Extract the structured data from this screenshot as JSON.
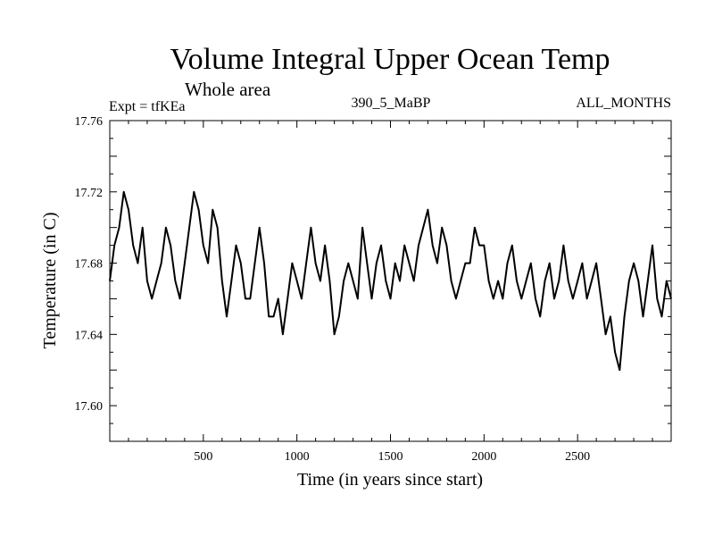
{
  "chart_data": {
    "type": "line",
    "title": "Volume Integral Upper Ocean Temp",
    "subtitle": "Whole area",
    "annotations": {
      "experiment": "Expt = tfKEa",
      "run": "390_5_MaBP",
      "months": "ALL_MONTHS"
    },
    "xlabel": "Time (in years since start)",
    "ylabel": "Temperature (in C)",
    "xlim": [
      0,
      3000
    ],
    "ylim": [
      17.58,
      17.76
    ],
    "xticks": [
      500,
      1000,
      1500,
      2000,
      2500
    ],
    "xtick_labels": [
      "500",
      "1000",
      "1500",
      "2000",
      "2500"
    ],
    "yticks": [
      17.6,
      17.64,
      17.68,
      17.72,
      17.76
    ],
    "ytick_labels": [
      "17.60",
      "17.64",
      "17.68",
      "17.72",
      "17.76"
    ],
    "grid": false,
    "series": [
      {
        "name": "",
        "x": [
          0,
          25,
          50,
          75,
          100,
          125,
          150,
          175,
          200,
          225,
          250,
          275,
          300,
          325,
          350,
          375,
          400,
          425,
          450,
          475,
          500,
          525,
          550,
          575,
          600,
          625,
          650,
          675,
          700,
          725,
          750,
          775,
          800,
          825,
          850,
          875,
          900,
          925,
          950,
          975,
          1000,
          1025,
          1050,
          1075,
          1100,
          1125,
          1150,
          1175,
          1200,
          1225,
          1250,
          1275,
          1300,
          1325,
          1350,
          1375,
          1400,
          1425,
          1450,
          1475,
          1500,
          1525,
          1550,
          1575,
          1600,
          1625,
          1650,
          1675,
          1700,
          1725,
          1750,
          1775,
          1800,
          1825,
          1850,
          1875,
          1900,
          1925,
          1950,
          1975,
          2000,
          2025,
          2050,
          2075,
          2100,
          2125,
          2150,
          2175,
          2200,
          2225,
          2250,
          2275,
          2300,
          2325,
          2350,
          2375,
          2400,
          2425,
          2450,
          2475,
          2500,
          2525,
          2550,
          2575,
          2600,
          2625,
          2650,
          2675,
          2700,
          2725,
          2750,
          2775,
          2800,
          2825,
          2850,
          2875,
          2900,
          2925,
          2950,
          2975,
          3000
        ],
        "values": [
          17.67,
          17.69,
          17.7,
          17.72,
          17.71,
          17.69,
          17.68,
          17.7,
          17.67,
          17.66,
          17.67,
          17.68,
          17.7,
          17.69,
          17.67,
          17.66,
          17.68,
          17.7,
          17.72,
          17.71,
          17.69,
          17.68,
          17.71,
          17.7,
          17.67,
          17.65,
          17.67,
          17.69,
          17.68,
          17.66,
          17.66,
          17.68,
          17.7,
          17.68,
          17.65,
          17.65,
          17.66,
          17.64,
          17.66,
          17.68,
          17.67,
          17.66,
          17.68,
          17.7,
          17.68,
          17.67,
          17.69,
          17.67,
          17.64,
          17.65,
          17.67,
          17.68,
          17.67,
          17.66,
          17.7,
          17.68,
          17.66,
          17.68,
          17.69,
          17.67,
          17.66,
          17.68,
          17.67,
          17.69,
          17.68,
          17.67,
          17.69,
          17.7,
          17.71,
          17.69,
          17.68,
          17.7,
          17.69,
          17.67,
          17.66,
          17.67,
          17.68,
          17.68,
          17.7,
          17.69,
          17.69,
          17.67,
          17.66,
          17.67,
          17.66,
          17.68,
          17.69,
          17.67,
          17.66,
          17.67,
          17.68,
          17.66,
          17.65,
          17.67,
          17.68,
          17.66,
          17.67,
          17.69,
          17.67,
          17.66,
          17.67,
          17.68,
          17.66,
          17.67,
          17.68,
          17.66,
          17.64,
          17.65,
          17.63,
          17.62,
          17.65,
          17.67,
          17.68,
          17.67,
          17.65,
          17.67,
          17.69,
          17.66,
          17.65,
          17.67,
          17.66
        ]
      }
    ]
  }
}
